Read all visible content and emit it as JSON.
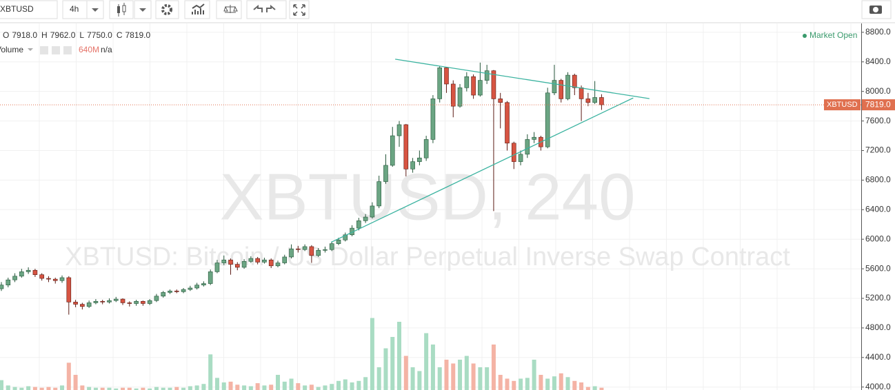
{
  "toolbar": {
    "symbol": "XBTUSD",
    "interval": "4h"
  },
  "chart_data": {
    "type": "candlestick",
    "legend": [
      {
        "key": "O",
        "value": 7918,
        "label": "7918.0"
      },
      {
        "key": "H",
        "value": 7962,
        "label": "7962.0"
      },
      {
        "key": "L",
        "value": 7750,
        "label": "7750.0"
      },
      {
        "key": "C",
        "value": 7819,
        "label": "7819.0"
      }
    ],
    "volume_legend": {
      "name": "Volume",
      "value": "640M",
      "ma": "n/a"
    },
    "status": "Market Open",
    "watermark": "XBTUSD, 240",
    "watermark_subtitle": "XBTUSD: Bitcoin / US Dollar Perpetual Inverse Swap Contract",
    "last_price": {
      "name": "XBTUSD",
      "value": 7819,
      "label": "7819.0",
      "color": "#e0704f"
    },
    "up_color": "#6ba583",
    "down_color": "#d75442",
    "volume_up_color": "#a9dcc3",
    "volume_down_color": "#f4b3a5",
    "ylim": [
      3960,
      8920
    ],
    "yticks": [
      {
        "value": 4000,
        "label": "4000.0"
      },
      {
        "value": 4400,
        "label": "4400.0"
      },
      {
        "value": 4800,
        "label": "4800.0"
      },
      {
        "value": 5200,
        "label": "5200.0"
      },
      {
        "value": 5600,
        "label": "5600.0"
      },
      {
        "value": 6000,
        "label": "6000.0"
      },
      {
        "value": 6400,
        "label": "6400.0"
      },
      {
        "value": 6800,
        "label": "6800.0"
      },
      {
        "value": 7200,
        "label": "7200.0"
      },
      {
        "value": 7600,
        "label": "7600.0"
      },
      {
        "value": 8000,
        "label": "8000.0"
      },
      {
        "value": 8400,
        "label": "8400.0"
      },
      {
        "value": 8800,
        "label": "8800.0"
      }
    ],
    "grid": true,
    "open": [
      5330,
      5380,
      5450,
      5500,
      5560,
      5580,
      5520,
      5470,
      5460,
      5440,
      5480,
      5150,
      5120,
      5090,
      5140,
      5160,
      5150,
      5170,
      5190,
      5140,
      5130,
      5160,
      5130,
      5170,
      5230,
      5280,
      5300,
      5290,
      5320,
      5340,
      5380,
      5400,
      5560,
      5680,
      5720,
      5660,
      5620,
      5700,
      5740,
      5690,
      5720,
      5640,
      5680,
      5760,
      5870,
      5860,
      5900,
      5780,
      5850,
      5860,
      5940,
      5990,
      6060,
      6150,
      6250,
      6300,
      6450,
      6780,
      7000,
      7400,
      7550,
      6950,
      7050,
      7100,
      7350,
      7900,
      8320,
      8100,
      7800,
      8050,
      8200,
      7950,
      8150,
      8280,
      7900,
      7850,
      7300,
      7050,
      7150,
      7350,
      7380,
      7250,
      7980,
      8150,
      7900,
      8220,
      8050,
      7900,
      7850,
      7918
    ],
    "high": [
      5420,
      5480,
      5540,
      5600,
      5620,
      5600,
      5540,
      5500,
      5480,
      5510,
      5500,
      5180,
      5140,
      5170,
      5190,
      5180,
      5200,
      5220,
      5200,
      5160,
      5180,
      5170,
      5190,
      5260,
      5300,
      5320,
      5320,
      5340,
      5370,
      5410,
      5430,
      5590,
      5720,
      5780,
      5740,
      5690,
      5730,
      5770,
      5760,
      5750,
      5740,
      5710,
      5790,
      5930,
      5910,
      5930,
      5920,
      5880,
      5900,
      5970,
      6020,
      6090,
      6190,
      6290,
      6340,
      6500,
      6860,
      7150,
      7520,
      7600,
      7560,
      7100,
      7200,
      7400,
      7950,
      8340,
      8330,
      8150,
      8100,
      8260,
      8230,
      8390,
      8360,
      8290,
      7980,
      7870,
      7320,
      7200,
      7420,
      7450,
      7400,
      8050,
      8360,
      8170,
      8260,
      8240,
      8080,
      7980,
      8140,
      7962
    ],
    "low": [
      5300,
      5350,
      5420,
      5480,
      5530,
      5490,
      5440,
      5420,
      5400,
      5410,
      4980,
      5080,
      5050,
      5070,
      5120,
      5120,
      5130,
      5150,
      5110,
      5090,
      5100,
      5100,
      5110,
      5150,
      5210,
      5260,
      5270,
      5270,
      5300,
      5320,
      5360,
      5380,
      5540,
      5650,
      5520,
      5580,
      5600,
      5680,
      5660,
      5670,
      5610,
      5620,
      5660,
      5740,
      5820,
      5840,
      5680,
      5760,
      5820,
      5840,
      5920,
      5970,
      6040,
      6120,
      6220,
      6280,
      6420,
      6750,
      6980,
      7250,
      6850,
      6900,
      7000,
      7060,
      7300,
      7850,
      7980,
      7650,
      7780,
      8000,
      7900,
      7930,
      8100,
      6380,
      7500,
      7200,
      6950,
      7000,
      7100,
      7300,
      7200,
      7230,
      7950,
      7850,
      7880,
      7950,
      7600,
      7800,
      7830,
      7750
    ],
    "close": [
      5380,
      5450,
      5500,
      5560,
      5580,
      5520,
      5470,
      5460,
      5440,
      5480,
      5150,
      5120,
      5090,
      5140,
      5160,
      5150,
      5170,
      5190,
      5140,
      5130,
      5160,
      5130,
      5170,
      5230,
      5280,
      5300,
      5290,
      5320,
      5340,
      5380,
      5400,
      5560,
      5680,
      5720,
      5660,
      5620,
      5700,
      5740,
      5690,
      5720,
      5640,
      5680,
      5760,
      5870,
      5860,
      5900,
      5780,
      5850,
      5860,
      5940,
      5990,
      6060,
      6150,
      6250,
      6300,
      6450,
      6780,
      7000,
      7400,
      7550,
      6950,
      7050,
      7100,
      7350,
      7900,
      8320,
      8100,
      7800,
      8050,
      8200,
      7950,
      8150,
      8280,
      7900,
      7850,
      7300,
      7050,
      7150,
      7350,
      7380,
      7250,
      7980,
      8150,
      7900,
      8220,
      8050,
      7900,
      7850,
      7918,
      7819
    ],
    "vlim": [
      0,
      1000
    ],
    "volume": [
      130,
      60,
      40,
      30,
      50,
      40,
      30,
      40,
      30,
      60,
      360,
      200,
      60,
      40,
      30,
      30,
      30,
      20,
      30,
      30,
      20,
      30,
      20,
      40,
      30,
      30,
      40,
      30,
      50,
      60,
      80,
      470,
      160,
      100,
      110,
      70,
      60,
      50,
      90,
      60,
      70,
      200,
      110,
      150,
      90,
      60,
      70,
      40,
      60,
      80,
      120,
      140,
      100,
      120,
      170,
      950,
      300,
      550,
      700,
      900,
      450,
      300,
      250,
      750,
      600,
      300,
      400,
      350,
      400,
      450,
      350,
      300,
      300,
      600,
      200,
      150,
      120,
      150,
      160,
      400,
      200,
      150,
      180,
      220,
      170,
      120,
      100,
      40,
      50,
      30
    ],
    "trendlines": [
      {
        "x": [
          58.4,
          96.1
        ],
        "y": [
          8436,
          7903
        ],
        "color": "#3bb3a0"
      },
      {
        "x": [
          48.9,
          93.7
        ],
        "y": [
          5959,
          7912
        ],
        "color": "#3bb3a0"
      }
    ]
  }
}
